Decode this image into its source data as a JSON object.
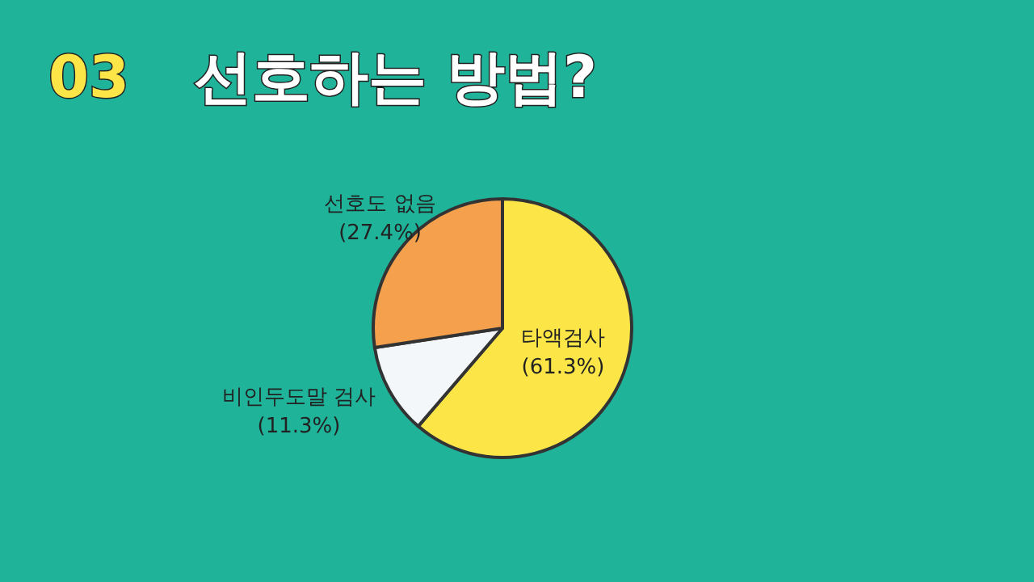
{
  "chart_data": {
    "type": "pie",
    "title": "03 선호하는 방법?",
    "categories": [
      "타액검사",
      "비인두도말 검사",
      "선호도 없음"
    ],
    "values": [
      61.3,
      11.3,
      27.4
    ],
    "value_labels": [
      "(61.3%)",
      "(11.3%)",
      "(27.4%)"
    ],
    "colors": [
      "#fbe547",
      "#f3f7fa",
      "#f4a04c"
    ]
  }
}
